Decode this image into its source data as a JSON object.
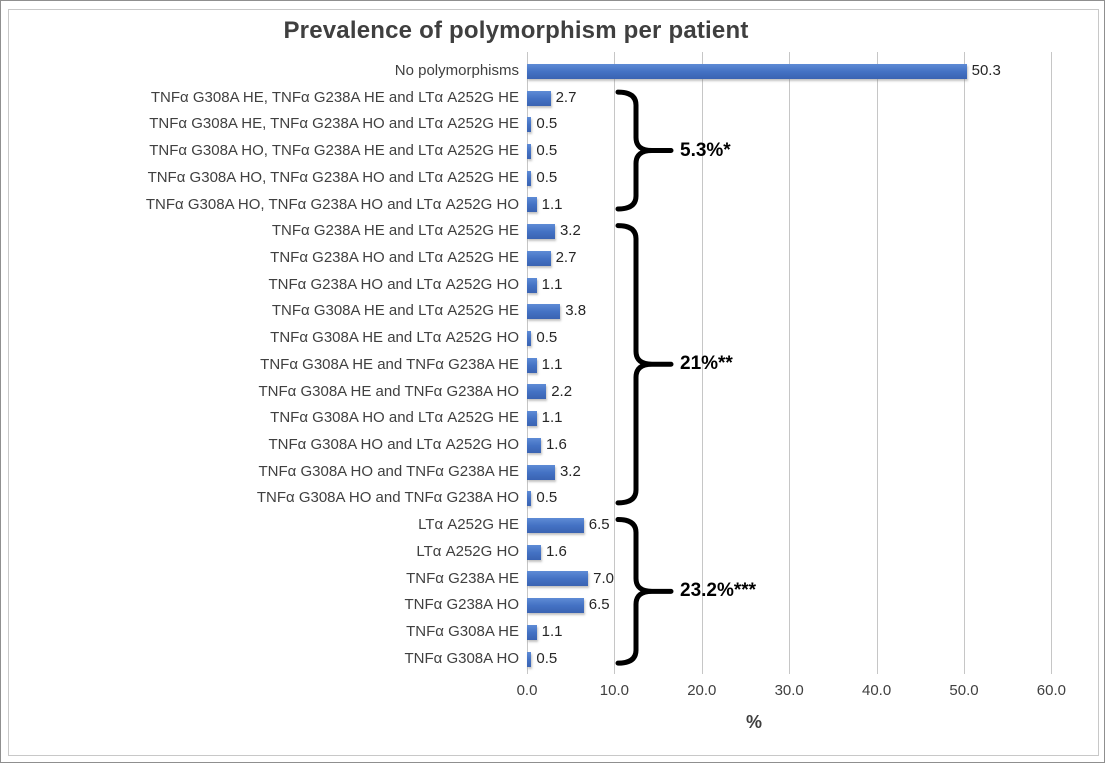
{
  "chart_data": {
    "type": "bar",
    "orientation": "horizontal",
    "title": "Prevalence of polymorphism per patient",
    "xlabel": "%",
    "xlim": [
      0,
      65
    ],
    "xticks": [
      0,
      10,
      20,
      30,
      40,
      50,
      60
    ],
    "xtick_labels": [
      "0.0",
      "10.0",
      "20.0",
      "30.0",
      "40.0",
      "50.0",
      "60.0"
    ],
    "grid": "vertical-major",
    "legend": "none",
    "bar_color": "#4472c4",
    "categories": [
      "No polymorphisms",
      "TNFα G308A HE, TNFα G238A HE and LTα A252G HE",
      "TNFα G308A HE, TNFα G238A HO and LTα A252G HE",
      "TNFα G308A HO, TNFα G238A HE and LTα A252G HE",
      "TNFα G308A HO, TNFα G238A HO and LTα A252G HE",
      "TNFα G308A HO, TNFα G238A HO and LTα A252G HO",
      "TNFα G238A HE and LTα A252G HE",
      "TNFα G238A HO and LTα A252G HE",
      "TNFα G238A HO and LTα A252G HO",
      "TNFα G308A HE and LTα A252G HE",
      "TNFα G308A HE and LTα A252G HO",
      "TNFα G308A HE and TNFα G238A HE",
      "TNFα G308A HE and TNFα G238A HO",
      "TNFα G308A HO and LTα A252G HE",
      "TNFα G308A HO and LTα A252G HO",
      "TNFα G308A HO and TNFα G238A HE",
      "TNFα G308A HO and TNFα G238A HO",
      "LTα A252G HE",
      "LTα A252G HO",
      "TNFα G238A HE",
      "TNFα G238A HO",
      "TNFα G308A HE",
      "TNFα G308A HO"
    ],
    "values": [
      50.3,
      2.7,
      0.5,
      0.5,
      0.5,
      1.1,
      3.2,
      2.7,
      1.1,
      3.8,
      0.5,
      1.1,
      2.2,
      1.1,
      1.6,
      3.2,
      0.5,
      6.5,
      1.6,
      7.0,
      6.5,
      1.1,
      0.5
    ],
    "value_labels": [
      "50.3",
      "2.7",
      "0.5",
      "0.5",
      "0.5",
      "1.1",
      "3.2",
      "2.7",
      "1.1",
      "3.8",
      "0.5",
      "1.1",
      "2.2",
      "1.1",
      "1.6",
      "3.2",
      "0.5",
      "6.5",
      "1.6",
      "7.0",
      "6.5",
      "1.1",
      "0.5"
    ],
    "annotations": [
      {
        "label": "5.3%*",
        "from_row": 1,
        "to_row": 5
      },
      {
        "label": "21%**",
        "from_row": 6,
        "to_row": 16
      },
      {
        "label": "23.2%***",
        "from_row": 17,
        "to_row": 22
      }
    ]
  },
  "style_colors": {
    "bar_accent": "#4472c4",
    "gridline": "#c6c6c6",
    "text": "#404040",
    "annotation": "#000000"
  }
}
